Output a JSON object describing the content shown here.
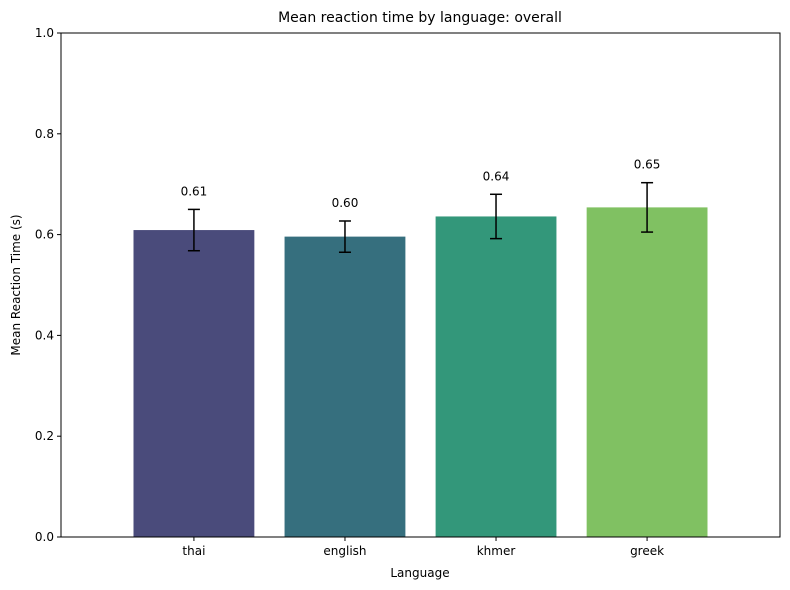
{
  "chart_data": {
    "type": "bar",
    "title": "Mean reaction time by language: overall",
    "xlabel": "Language",
    "ylabel": "Mean Reaction Time (s)",
    "categories": [
      "thai",
      "english",
      "khmer",
      "greek"
    ],
    "values": [
      0.609,
      0.596,
      0.636,
      0.654
    ],
    "errors": [
      0.041,
      0.031,
      0.044,
      0.049
    ],
    "data_labels": [
      "0.61",
      "0.60",
      "0.64",
      "0.65"
    ],
    "colors": [
      "#4a4b7b",
      "#366f7e",
      "#33977a",
      "#80c162"
    ],
    "ylim": [
      0,
      1.0
    ],
    "yticks": [
      0.0,
      0.2,
      0.4,
      0.6,
      0.8,
      1.0
    ],
    "ytick_labels": [
      "0.0",
      "0.2",
      "0.4",
      "0.6",
      "0.8",
      "1.0"
    ],
    "grid": false,
    "legend": "none"
  }
}
